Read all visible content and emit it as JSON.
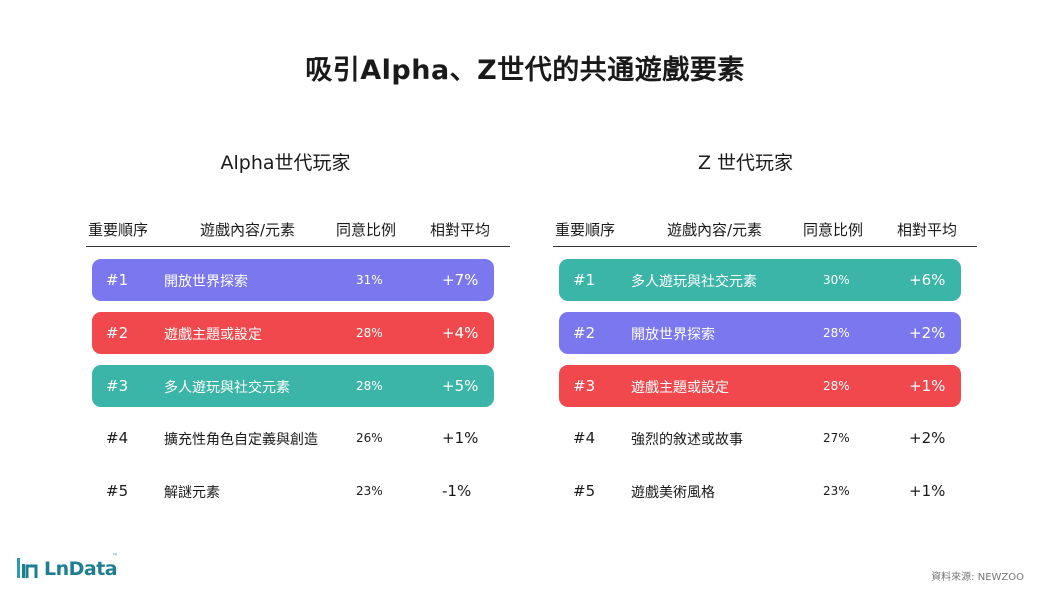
{
  "title": "吸引Alpha、Z世代的共通遊戲要素",
  "headers": {
    "rank": "重要順序",
    "item": "遊戲內容/元素",
    "pct": "同意比例",
    "rel": "相對平均"
  },
  "panels": [
    {
      "title": "Alpha世代玩家",
      "rows": [
        {
          "rank": "#1",
          "item": "開放世界探索",
          "pct": "31%",
          "rel": "+7%",
          "color": "#7b77ee"
        },
        {
          "rank": "#2",
          "item": "遊戲主題或設定",
          "pct": "28%",
          "rel": "+4%",
          "color": "#f0484c"
        },
        {
          "rank": "#3",
          "item": "多人遊玩與社交元素",
          "pct": "28%",
          "rel": "+5%",
          "color": "#3bb5a8"
        },
        {
          "rank": "#4",
          "item": "擴充性角色自定義與創造",
          "pct": "26%",
          "rel": "+1%"
        },
        {
          "rank": "#5",
          "item": "解謎元素",
          "pct": "23%",
          "rel": "-1%"
        }
      ]
    },
    {
      "title": "Z 世代玩家",
      "rows": [
        {
          "rank": "#1",
          "item": "多人遊玩與社交元素",
          "pct": "30%",
          "rel": "+6%",
          "color": "#3bb5a8"
        },
        {
          "rank": "#2",
          "item": "開放世界探索",
          "pct": "28%",
          "rel": "+2%",
          "color": "#7b77ee"
        },
        {
          "rank": "#3",
          "item": "遊戲主題或設定",
          "pct": "28%",
          "rel": "+1%",
          "color": "#f0484c"
        },
        {
          "rank": "#4",
          "item": "強烈的敘述或故事",
          "pct": "27%",
          "rel": "+2%"
        },
        {
          "rank": "#5",
          "item": "遊戲美術風格",
          "pct": "23%",
          "rel": "+1%"
        }
      ]
    }
  ],
  "logo": {
    "text": "LnData",
    "tm": "™"
  },
  "source": "資料來源: NEWZOO"
}
